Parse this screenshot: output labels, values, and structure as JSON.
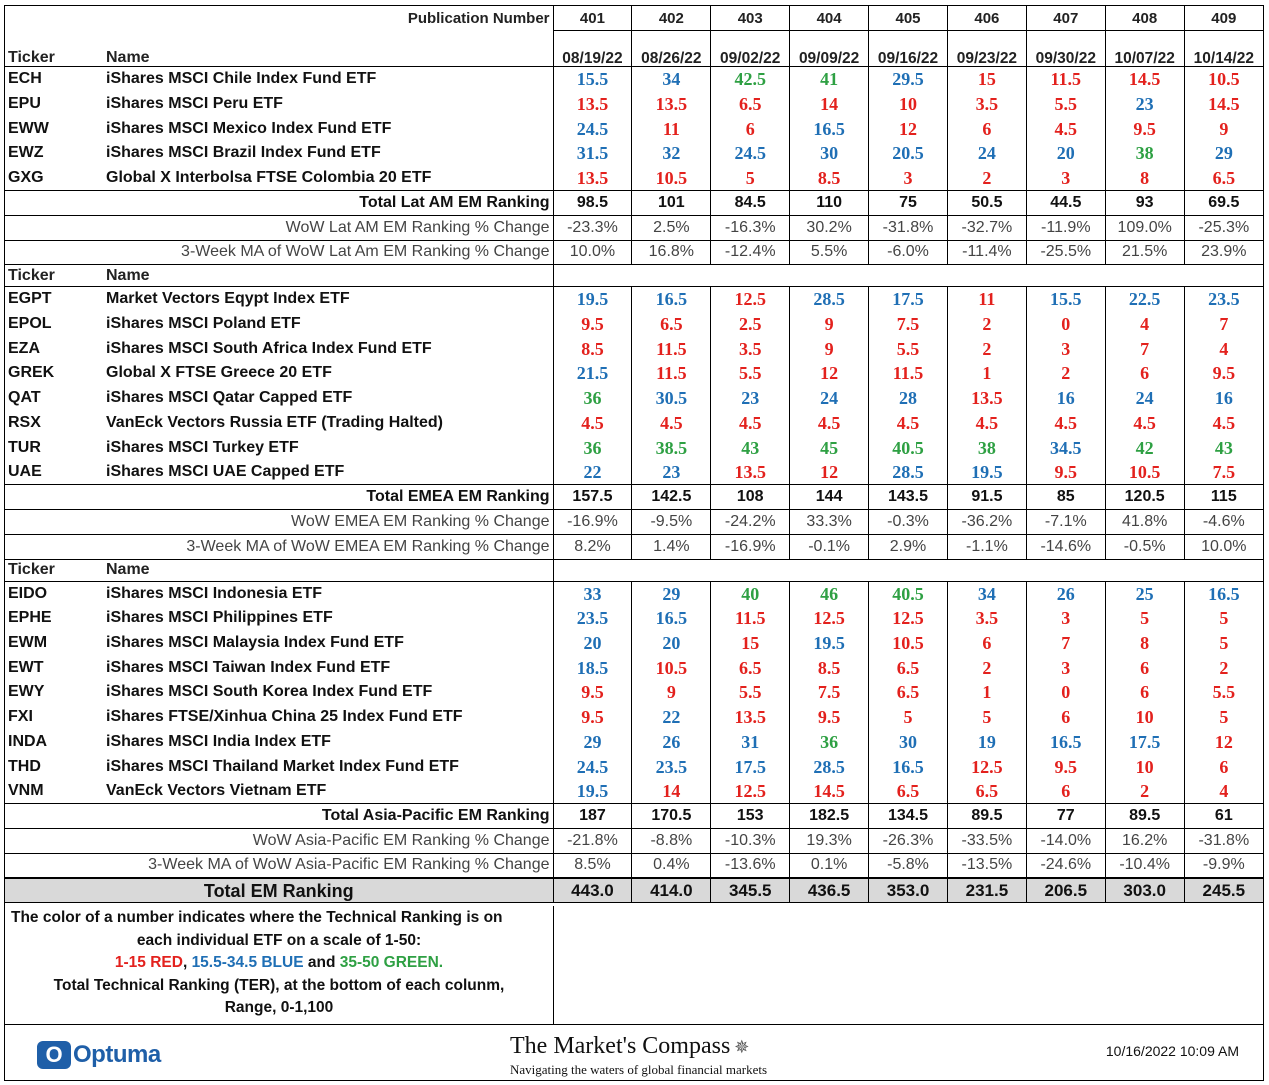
{
  "header": {
    "publication_label": "Publication Number",
    "publication_numbers": [
      "401",
      "402",
      "403",
      "404",
      "405",
      "406",
      "407",
      "408",
      "409"
    ],
    "ticker_label": "Ticker",
    "name_label": "Name",
    "dates": [
      "08/19/22",
      "08/26/22",
      "09/02/22",
      "09/09/22",
      "09/16/22",
      "09/23/22",
      "09/30/22",
      "10/07/22",
      "10/14/22"
    ]
  },
  "sections": [
    {
      "id": "latam",
      "show_header": false,
      "rows": [
        {
          "ticker": "ECH",
          "name": "iShares MSCI Chile Index Fund ETF",
          "values": [
            "15.5",
            "34",
            "42.5",
            "41",
            "29.5",
            "15",
            "11.5",
            "14.5",
            "10.5"
          ]
        },
        {
          "ticker": "EPU",
          "name": "iShares MSCI Peru ETF",
          "values": [
            "13.5",
            "13.5",
            "6.5",
            "14",
            "10",
            "3.5",
            "5.5",
            "23",
            "14.5"
          ]
        },
        {
          "ticker": "EWW",
          "name": "iShares MSCI Mexico Index Fund ETF",
          "values": [
            "24.5",
            "11",
            "6",
            "16.5",
            "12",
            "6",
            "4.5",
            "9.5",
            "9"
          ]
        },
        {
          "ticker": "EWZ",
          "name": "iShares MSCI Brazil Index Fund ETF",
          "values": [
            "31.5",
            "32",
            "24.5",
            "30",
            "20.5",
            "24",
            "20",
            "38",
            "29"
          ]
        },
        {
          "ticker": "GXG",
          "name": "Global X Interbolsa FTSE Colombia 20 ETF",
          "values": [
            "13.5",
            "10.5",
            "5",
            "8.5",
            "3",
            "2",
            "3",
            "8",
            "6.5"
          ]
        }
      ],
      "total_label": "Total Lat AM EM Ranking",
      "totals": [
        "98.5",
        "101",
        "84.5",
        "110",
        "75",
        "50.5",
        "44.5",
        "93",
        "69.5"
      ],
      "wow_label": "WoW Lat AM EM Ranking % Change",
      "wow": [
        "-23.3%",
        "2.5%",
        "-16.3%",
        "30.2%",
        "-31.8%",
        "-32.7%",
        "-11.9%",
        "109.0%",
        "-25.3%"
      ],
      "ma_label": "3-Week MA of WoW Lat Am EM Ranking % Change",
      "ma": [
        "10.0%",
        "16.8%",
        "-12.4%",
        "5.5%",
        "-6.0%",
        "-11.4%",
        "-25.5%",
        "21.5%",
        "23.9%"
      ]
    },
    {
      "id": "emea",
      "show_header": true,
      "rows": [
        {
          "ticker": "EGPT",
          "name": "Market Vectors Eqypt Index ETF",
          "values": [
            "19.5",
            "16.5",
            "12.5",
            "28.5",
            "17.5",
            "11",
            "15.5",
            "22.5",
            "23.5"
          ]
        },
        {
          "ticker": "EPOL",
          "name": "iShares MSCI Poland ETF",
          "values": [
            "9.5",
            "6.5",
            "2.5",
            "9",
            "7.5",
            "2",
            "0",
            "4",
            "7"
          ]
        },
        {
          "ticker": "EZA",
          "name": "iShares MSCI South Africa Index Fund ETF",
          "values": [
            "8.5",
            "11.5",
            "3.5",
            "9",
            "5.5",
            "2",
            "3",
            "7",
            "4"
          ]
        },
        {
          "ticker": "GREK",
          "name": "Global X FTSE Greece 20 ETF",
          "values": [
            "21.5",
            "11.5",
            "5.5",
            "12",
            "11.5",
            "1",
            "2",
            "6",
            "9.5"
          ]
        },
        {
          "ticker": "QAT",
          "name": "iShares MSCI Qatar Capped ETF",
          "values": [
            "36",
            "30.5",
            "23",
            "24",
            "28",
            "13.5",
            "16",
            "24",
            "16"
          ]
        },
        {
          "ticker": "RSX",
          "name": "VanEck Vectors Russia ETF (Trading Halted)",
          "values": [
            "4.5",
            "4.5",
            "4.5",
            "4.5",
            "4.5",
            "4.5",
            "4.5",
            "4.5",
            "4.5"
          ]
        },
        {
          "ticker": "TUR",
          "name": "iShares MSCI Turkey ETF",
          "values": [
            "36",
            "38.5",
            "43",
            "45",
            "40.5",
            "38",
            "34.5",
            "42",
            "43"
          ]
        },
        {
          "ticker": "UAE",
          "name": "iShares MSCI UAE Capped ETF",
          "values": [
            "22",
            "23",
            "13.5",
            "12",
            "28.5",
            "19.5",
            "9.5",
            "10.5",
            "7.5"
          ]
        }
      ],
      "total_label": "Total EMEA EM Ranking",
      "totals": [
        "157.5",
        "142.5",
        "108",
        "144",
        "143.5",
        "91.5",
        "85",
        "120.5",
        "115"
      ],
      "wow_label": "WoW EMEA EM Ranking % Change",
      "wow": [
        "-16.9%",
        "-9.5%",
        "-24.2%",
        "33.3%",
        "-0.3%",
        "-36.2%",
        "-7.1%",
        "41.8%",
        "-4.6%"
      ],
      "ma_label": "3-Week MA of WoW EMEA EM Ranking % Change",
      "ma": [
        "8.2%",
        "1.4%",
        "-16.9%",
        "-0.1%",
        "2.9%",
        "-1.1%",
        "-14.6%",
        "-0.5%",
        "10.0%"
      ]
    },
    {
      "id": "apac",
      "show_header": true,
      "rows": [
        {
          "ticker": "EIDO",
          "name": "iShares MSCI Indonesia ETF",
          "values": [
            "33",
            "29",
            "40",
            "46",
            "40.5",
            "34",
            "26",
            "25",
            "16.5"
          ]
        },
        {
          "ticker": "EPHE",
          "name": "iShares MSCI Philippines ETF",
          "values": [
            "23.5",
            "16.5",
            "11.5",
            "12.5",
            "12.5",
            "3.5",
            "3",
            "5",
            "5"
          ]
        },
        {
          "ticker": "EWM",
          "name": "iShares MSCI Malaysia Index Fund ETF",
          "values": [
            "20",
            "20",
            "15",
            "19.5",
            "10.5",
            "6",
            "7",
            "8",
            "5"
          ]
        },
        {
          "ticker": "EWT",
          "name": "iShares MSCI Taiwan Index Fund ETF",
          "values": [
            "18.5",
            "10.5",
            "6.5",
            "8.5",
            "6.5",
            "2",
            "3",
            "6",
            "2"
          ]
        },
        {
          "ticker": "EWY",
          "name": "iShares MSCI South Korea Index Fund ETF",
          "values": [
            "9.5",
            "9",
            "5.5",
            "7.5",
            "6.5",
            "1",
            "0",
            "6",
            "5.5"
          ]
        },
        {
          "ticker": "FXI",
          "name": "iShares FTSE/Xinhua China 25 Index Fund ETF",
          "values": [
            "9.5",
            "22",
            "13.5",
            "9.5",
            "5",
            "5",
            "6",
            "10",
            "5"
          ]
        },
        {
          "ticker": "INDA",
          "name": "iShares MSCI India Index ETF",
          "values": [
            "29",
            "26",
            "31",
            "36",
            "30",
            "19",
            "16.5",
            "17.5",
            "12"
          ]
        },
        {
          "ticker": "THD",
          "name": "iShares MSCI Thailand Market Index Fund ETF",
          "values": [
            "24.5",
            "23.5",
            "17.5",
            "28.5",
            "16.5",
            "12.5",
            "9.5",
            "10",
            "6"
          ]
        },
        {
          "ticker": "VNM",
          "name": "VanEck Vectors Vietnam ETF",
          "values": [
            "19.5",
            "14",
            "12.5",
            "14.5",
            "6.5",
            "6.5",
            "6",
            "2",
            "4"
          ]
        }
      ],
      "total_label": "Total Asia-Pacific EM Ranking",
      "totals": [
        "187",
        "170.5",
        "153",
        "182.5",
        "134.5",
        "89.5",
        "77",
        "89.5",
        "61"
      ],
      "wow_label": "WoW Asia-Pacific EM Ranking % Change",
      "wow": [
        "-21.8%",
        "-8.8%",
        "-10.3%",
        "19.3%",
        "-26.3%",
        "-33.5%",
        "-14.0%",
        "16.2%",
        "-31.8%"
      ],
      "ma_label": "3-Week MA of WoW Asia-Pacific EM Ranking % Change",
      "ma": [
        "8.5%",
        "0.4%",
        "-13.6%",
        "0.1%",
        "-5.8%",
        "-13.5%",
        "-24.6%",
        "-10.4%",
        "-9.9%"
      ]
    }
  ],
  "grand_total": {
    "label": "Total EM Ranking",
    "values": [
      "443.0",
      "414.0",
      "345.5",
      "436.5",
      "353.0",
      "231.5",
      "206.5",
      "303.0",
      "245.5"
    ]
  },
  "legend": {
    "line1": "The color of a number indicates where the Technical Ranking is on",
    "line2": "each individual ETF on a scale of 1-50:",
    "red": "1-15 RED",
    "sep1": ", ",
    "blue": "15.5-34.5 BLUE",
    "sep2": " and ",
    "green": "35-50 GREEN.",
    "line4": "Total Technical Ranking (TER),  at the bottom of each colunm,",
    "line5": "Range, 0-1,100"
  },
  "colors": {
    "red": "#e3211d",
    "blue": "#1f6fb5",
    "green": "#2ea043"
  },
  "footer": {
    "optuma": "Optuma",
    "mc_title": "The Market's Compass",
    "mc_subtitle": "Navigating the waters of global financial markets",
    "timestamp": "10/16/2022 10:09 AM"
  }
}
